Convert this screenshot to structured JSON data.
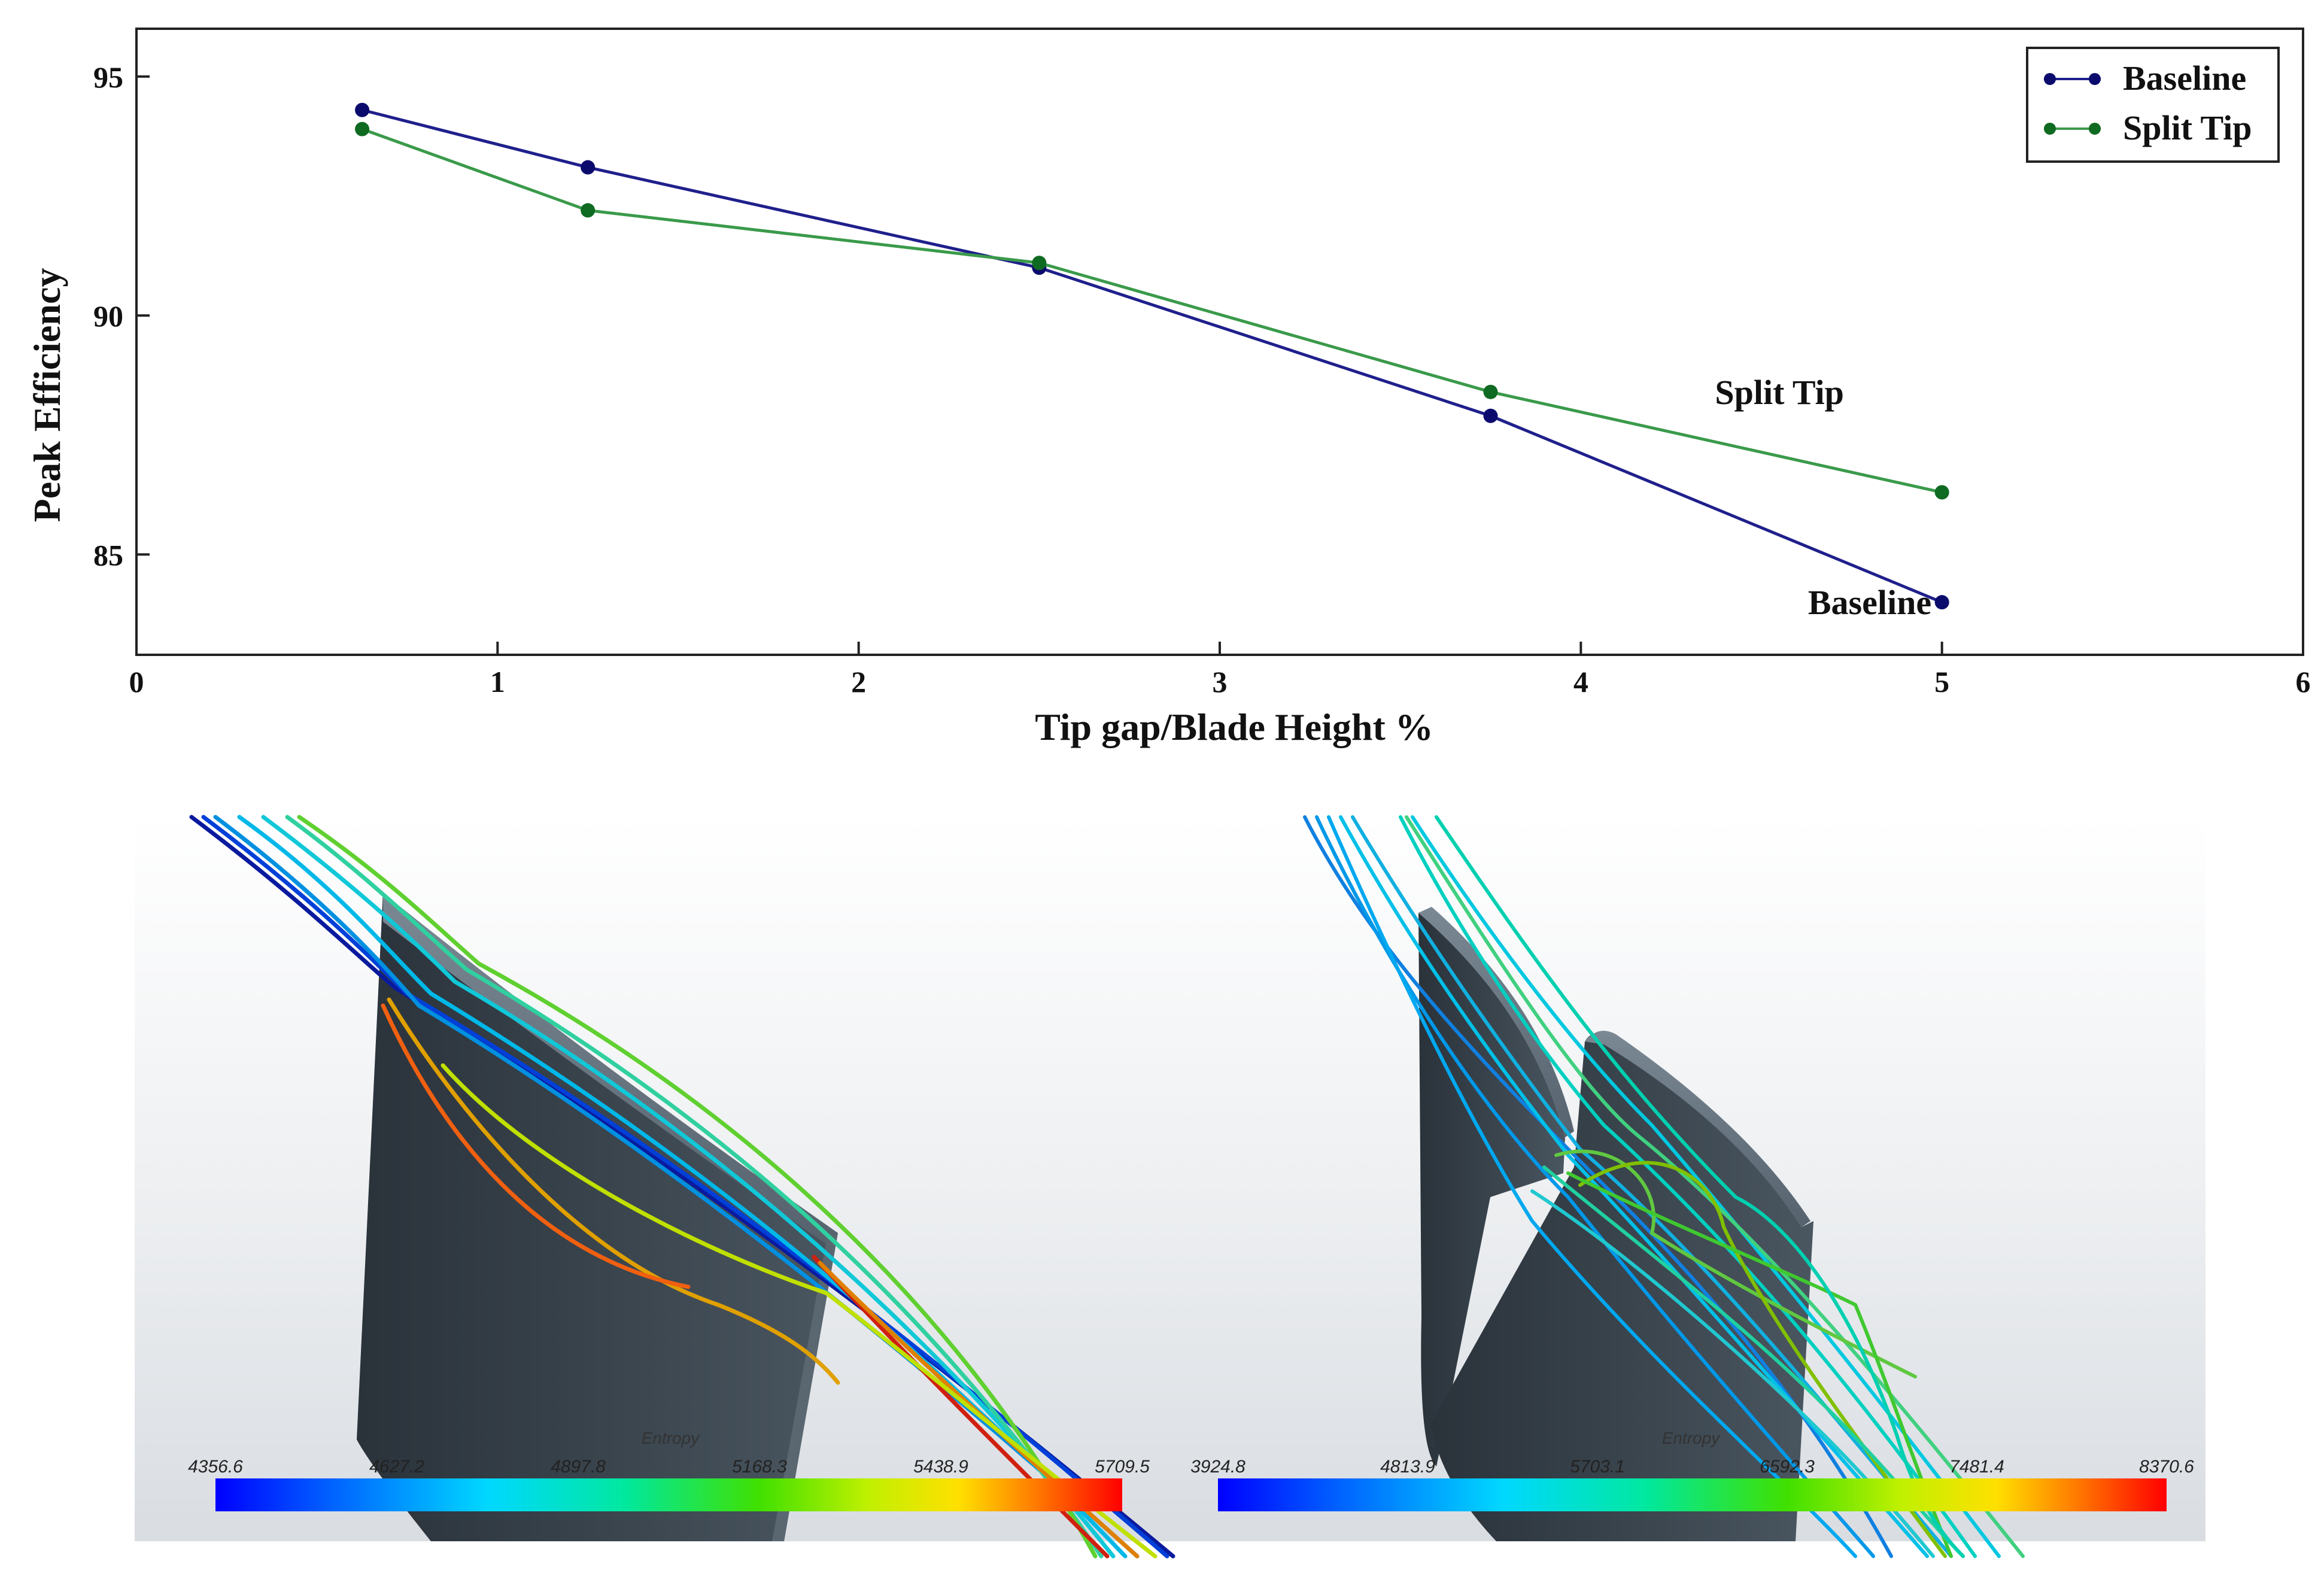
{
  "chart_data": {
    "type": "line",
    "xlabel": "Tip gap/Blade Height %",
    "ylabel": "Peak Efficiency",
    "xlim": [
      0,
      6
    ],
    "ylim": [
      82.9,
      96
    ],
    "xticks": [
      0,
      1,
      2,
      3,
      4,
      5,
      6
    ],
    "yticks": [
      85,
      90,
      95
    ],
    "grid": false,
    "legend_position": "top-right",
    "series": [
      {
        "name": "Baseline",
        "color": "#1f1f8c",
        "marker_color": "#0b0b6e",
        "x": [
          0.625,
          1.25,
          2.5,
          3.75,
          5.0
        ],
        "y": [
          94.3,
          93.1,
          91.0,
          87.9,
          84.0
        ]
      },
      {
        "name": "Split Tip",
        "color": "#3a9a4a",
        "marker_color": "#0f6a22",
        "x": [
          0.625,
          1.25,
          2.5,
          3.75,
          5.0
        ],
        "y": [
          93.9,
          92.2,
          91.1,
          88.4,
          86.3
        ]
      }
    ],
    "annotations": [
      {
        "text": "Split Tip",
        "x": 4.55,
        "y": 88.4
      },
      {
        "text": "Baseline",
        "x": 4.8,
        "y": 84.0
      }
    ]
  },
  "panels": [
    {
      "name": "baseline-blade",
      "colorbar": {
        "title": "Entropy",
        "labels": [
          "4356.6",
          "4627.2",
          "4897.8",
          "5168.3",
          "5438.9",
          "5709.5"
        ]
      }
    },
    {
      "name": "split-tip-blade",
      "colorbar": {
        "title": "Entropy",
        "labels": [
          "3924.8",
          "4813.9",
          "5703.1",
          "6592.3",
          "7481.4",
          "8370.6"
        ]
      }
    }
  ]
}
